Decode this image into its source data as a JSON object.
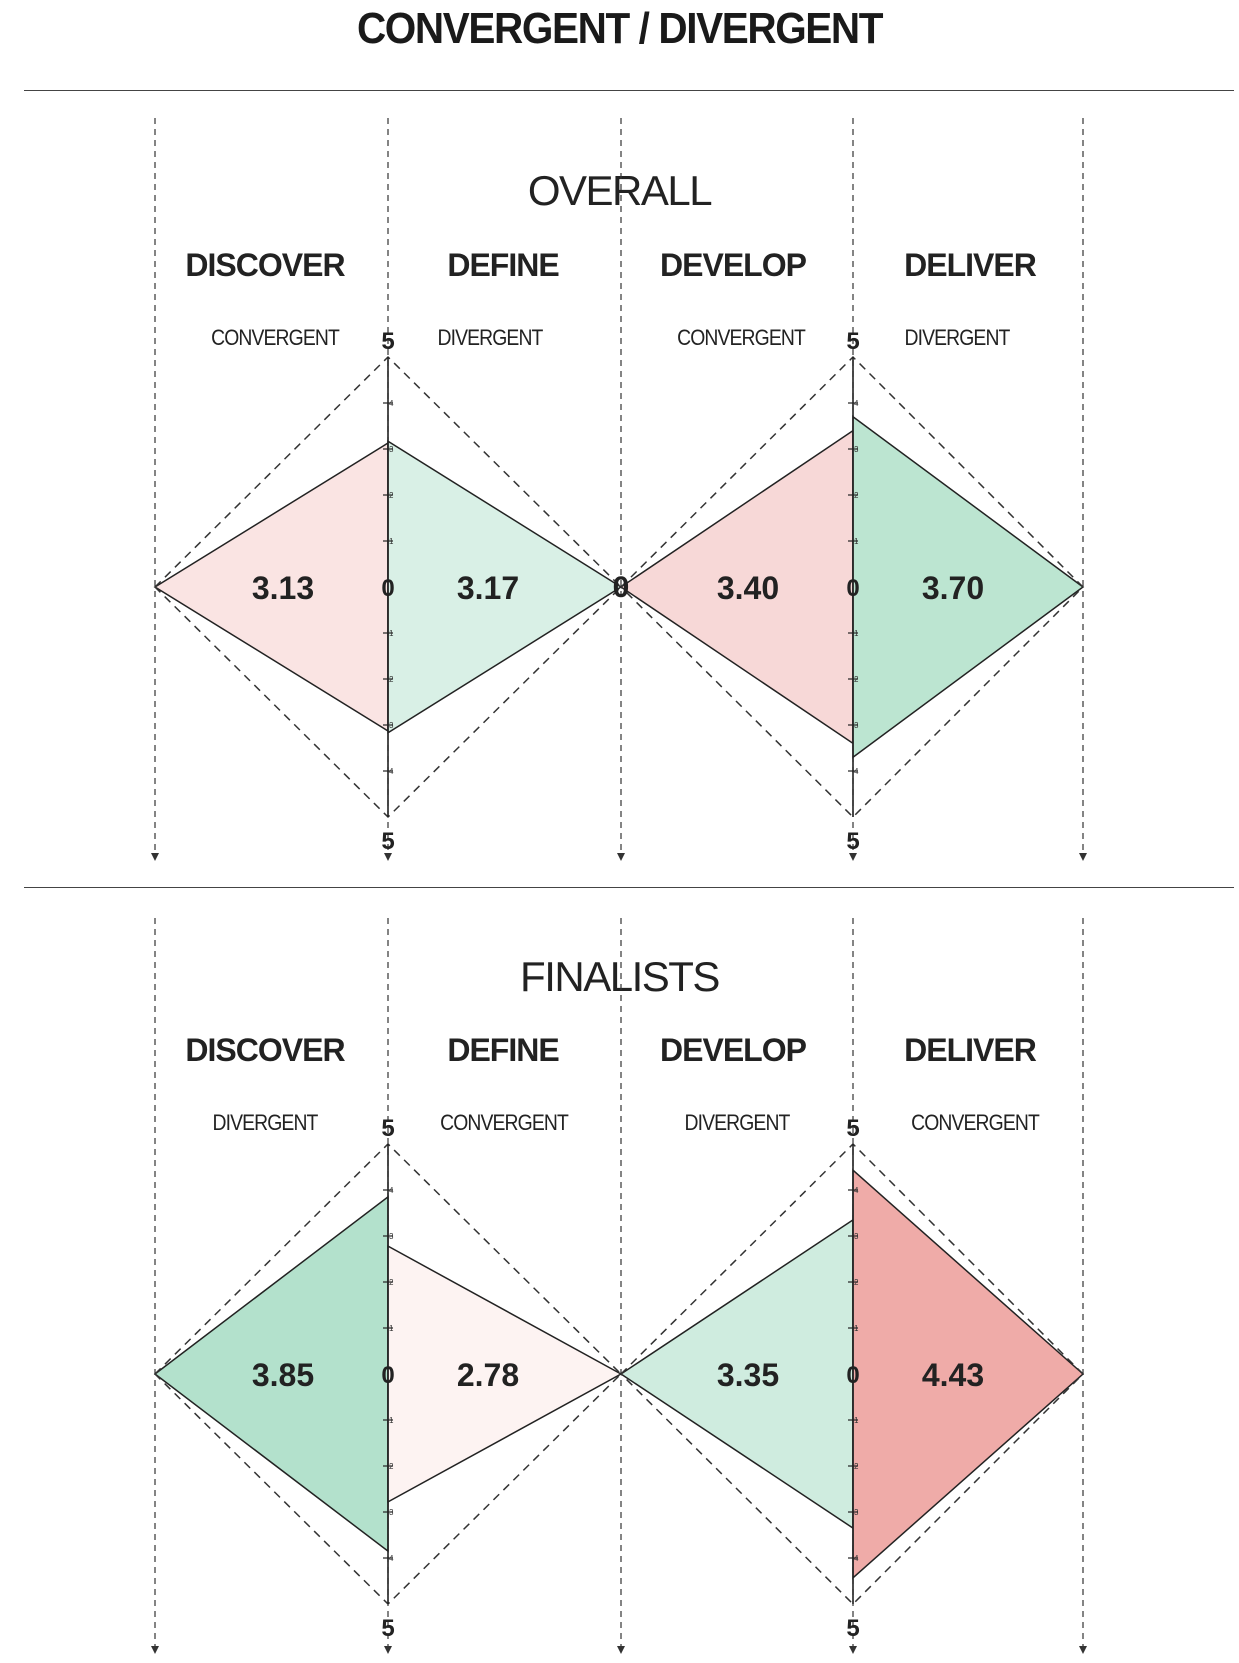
{
  "title": "CONVERGENT / DIVERGENT",
  "colors": {
    "divergent_full": "#8fd3b3",
    "convergent_full": "#eea8a5",
    "outline": "#222222",
    "dashed": "#333333"
  },
  "chart_data": [
    {
      "type": "diverging-diamond",
      "title": "OVERALL",
      "scale": {
        "min": 0,
        "max": 5,
        "center_label": "0",
        "top_label": "5",
        "bottom_label": "5"
      },
      "phases": [
        {
          "name": "DISCOVER",
          "mode": "CONVERGENT",
          "value": 3.13,
          "label": "3.13"
        },
        {
          "name": "DEFINE",
          "mode": "DIVERGENT",
          "value": 3.17,
          "label": "3.17"
        },
        {
          "name": "DEVELOP",
          "mode": "CONVERGENT",
          "value": 3.4,
          "label": "3.40"
        },
        {
          "name": "DELIVER",
          "mode": "DIVERGENT",
          "value": 3.7,
          "label": "3.70"
        }
      ]
    },
    {
      "type": "diverging-diamond",
      "title": "FINALISTS",
      "scale": {
        "min": 0,
        "max": 5,
        "center_label": "0",
        "top_label": "5",
        "bottom_label": "5"
      },
      "phases": [
        {
          "name": "DISCOVER",
          "mode": "DIVERGENT",
          "value": 3.85,
          "label": "3.85"
        },
        {
          "name": "DEFINE",
          "mode": "CONVERGENT",
          "value": 2.78,
          "label": "2.78"
        },
        {
          "name": "DEVELOP",
          "mode": "DIVERGENT",
          "value": 3.35,
          "label": "3.35"
        },
        {
          "name": "DELIVER",
          "mode": "CONVERGENT",
          "value": 4.43,
          "label": "4.43"
        }
      ]
    }
  ]
}
